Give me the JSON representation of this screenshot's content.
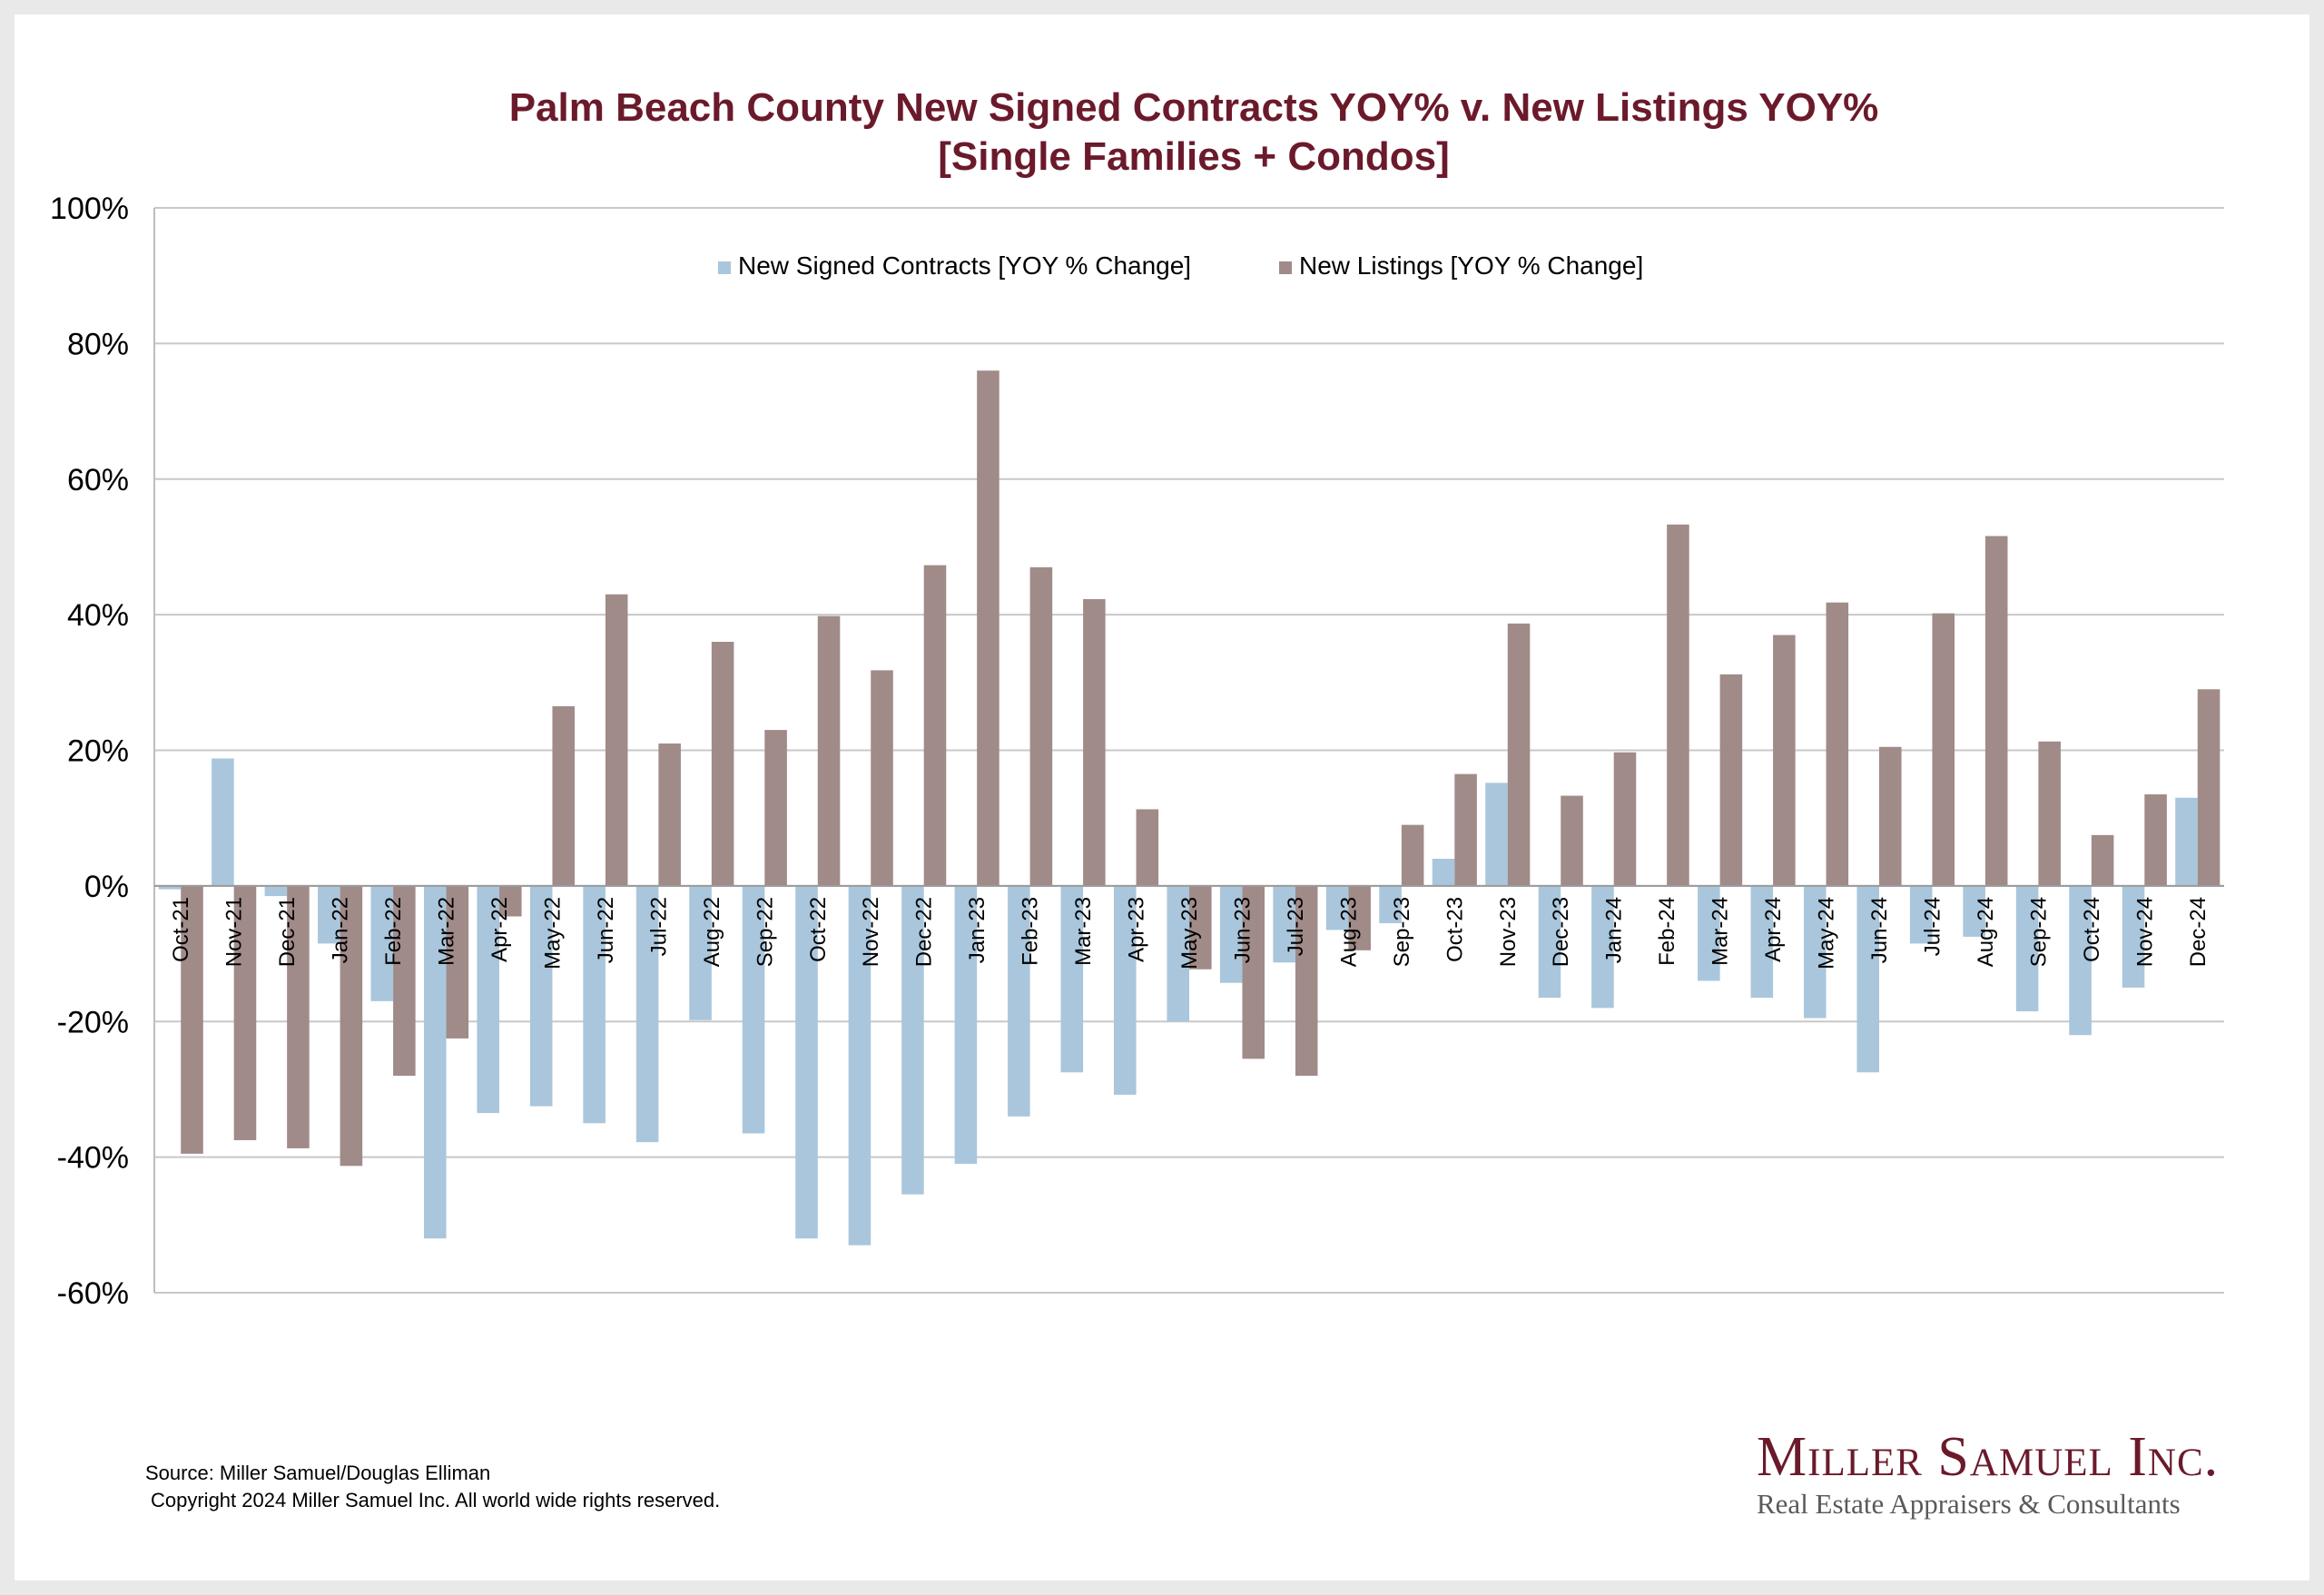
{
  "chart_data": {
    "type": "bar",
    "title": "Palm Beach County New Signed Contracts YOY% v. New Listings YOY%",
    "subtitle": "[Single Families + Condos]",
    "xlabel": "",
    "ylabel": "",
    "ylim": [
      -60,
      100
    ],
    "yticks": [
      "100%",
      "80%",
      "60%",
      "40%",
      "20%",
      "0%",
      "-20%",
      "-40%",
      "-60%"
    ],
    "grid": true,
    "legend_placement": "top-center",
    "categories": [
      "Oct-21",
      "Nov-21",
      "Dec-21",
      "Jan-22",
      "Feb-22",
      "Mar-22",
      "Apr-22",
      "May-22",
      "Jun-22",
      "Jul-22",
      "Aug-22",
      "Sep-22",
      "Oct-22",
      "Nov-22",
      "Dec-22",
      "Jan-23",
      "Feb-23",
      "Mar-23",
      "Apr-23",
      "May-23",
      "Jun-23",
      "Jul-23",
      "Aug-23",
      "Sep-23",
      "Oct-23",
      "Nov-23",
      "Dec-23",
      "Jan-24",
      "Feb-24",
      "Mar-24",
      "Apr-24",
      "May-24",
      "Jun-24",
      "Jul-24",
      "Aug-24",
      "Sep-24",
      "Oct-24",
      "Nov-24",
      "Dec-24"
    ],
    "series": [
      {
        "name": "New Signed Contracts [YOY % Change]",
        "color": "#a9c6dc",
        "values": [
          -0.5,
          18.8,
          -1.5,
          -8.5,
          -17.0,
          -52.0,
          -33.5,
          -32.5,
          -35.0,
          -37.8,
          -19.8,
          -36.5,
          -52.0,
          -53.0,
          -45.5,
          -41.0,
          -34.0,
          -27.5,
          -30.8,
          -20.0,
          -14.3,
          -11.3,
          -6.5,
          -5.5,
          4.0,
          15.2,
          -16.5,
          -18.0,
          0.0,
          -14.0,
          -16.5,
          -19.5,
          -27.5,
          -8.5,
          -7.5,
          -18.5,
          -22.0,
          -15.0,
          13.0
        ]
      },
      {
        "name": "New Listings [YOY % Change]",
        "color": "#a08b89",
        "values": [
          -39.5,
          -37.5,
          -38.7,
          -41.3,
          -28.0,
          -22.5,
          -4.5,
          26.5,
          43.0,
          21.0,
          36.0,
          23.0,
          39.8,
          31.8,
          47.3,
          76.0,
          47.0,
          42.3,
          11.3,
          -12.3,
          -25.5,
          -28.0,
          -9.5,
          9.0,
          16.5,
          38.7,
          13.3,
          19.7,
          53.3,
          31.2,
          37.0,
          41.8,
          20.5,
          40.2,
          51.6,
          21.3,
          7.5,
          13.5,
          29.0
        ]
      }
    ]
  },
  "footer": {
    "source": "Source: Miller Samuel/Douglas Elliman",
    "copyright": "Copyright 2024 Miller Samuel Inc.  All world wide rights reserved."
  },
  "logo": {
    "name": "Miller Samuel Inc.",
    "tagline": "Real Estate Appraisers & Consultants"
  }
}
